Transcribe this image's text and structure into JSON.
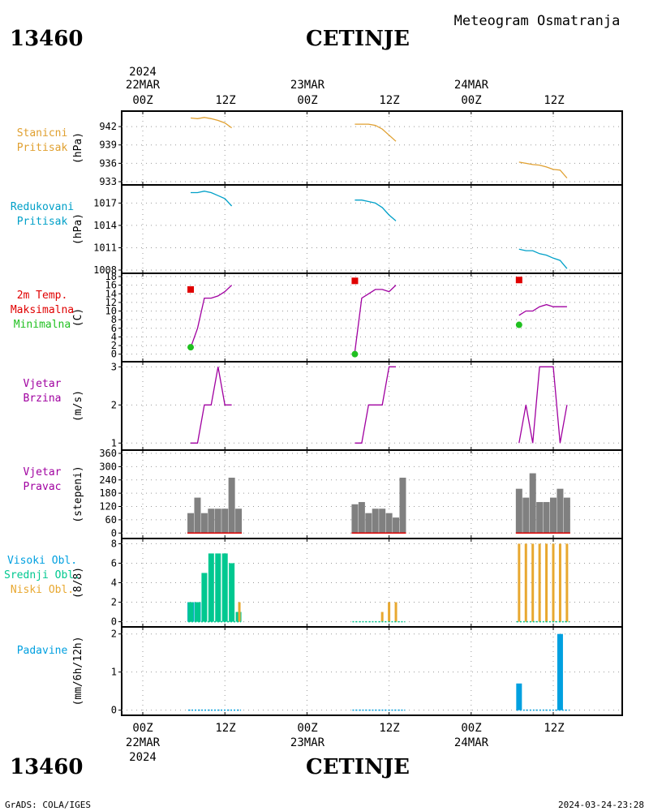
{
  "header": {
    "station_id": "13460",
    "station_name": "CETINJE",
    "meteogram_title": "Meteogram Osmatranja"
  },
  "time_axis": {
    "year": "2024",
    "days": [
      "22MAR",
      "23MAR",
      "24MAR"
    ],
    "ticks": [
      "00Z",
      "12Z",
      "00Z",
      "12Z",
      "00Z",
      "12Z"
    ]
  },
  "footer": {
    "credit": "GrADS: COLA/IGES",
    "timestamp": "2024-03-24-23:28"
  },
  "colors": {
    "station_pressure": "#e0a030",
    "reduced_pressure": "#00a0c8",
    "tmax": "#e00000",
    "tmin": "#20c020",
    "wind": "#a000a0",
    "direction_bar": "#808080",
    "high_cloud": "#00a0e0",
    "mid_cloud": "#00c890",
    "low_cloud": "#e8a830",
    "precip": "#00a0e0"
  },
  "chart_data": [
    {
      "id": "station_pressure",
      "type": "line",
      "labels": [
        "Stanicni",
        "Pritisak"
      ],
      "ylabel": "(hPa)",
      "yticks": [
        933,
        936,
        939,
        942
      ],
      "ylim": [
        933,
        944
      ],
      "series": [
        {
          "x": [
            7,
            8,
            9,
            10,
            11,
            12,
            13
          ],
          "y": [
            943.4,
            943.3,
            943.5,
            943.3,
            943.0,
            942.6,
            941.8
          ]
        },
        {
          "x": [
            31,
            32,
            33,
            34,
            35,
            36,
            37
          ],
          "y": [
            942.4,
            942.4,
            942.4,
            942.2,
            941.6,
            940.6,
            939.6
          ]
        },
        {
          "x": [
            55,
            56,
            57,
            58,
            59,
            60,
            61,
            62
          ],
          "y": [
            936.2,
            936.0,
            935.8,
            935.7,
            935.4,
            935.0,
            934.9,
            933.6
          ]
        }
      ]
    },
    {
      "id": "reduced_pressure",
      "type": "line",
      "labels": [
        "Redukovani",
        "Pritisak"
      ],
      "ylabel": "(hPa)",
      "yticks": [
        1008,
        1011,
        1014,
        1017
      ],
      "ylim": [
        1008,
        1019
      ],
      "series": [
        {
          "x": [
            7,
            8,
            9,
            10,
            11,
            12,
            13
          ],
          "y": [
            1018.4,
            1018.4,
            1018.6,
            1018.4,
            1018.0,
            1017.6,
            1016.6
          ]
        },
        {
          "x": [
            31,
            32,
            33,
            34,
            35,
            36,
            37
          ],
          "y": [
            1017.4,
            1017.4,
            1017.2,
            1017.0,
            1016.4,
            1015.4,
            1014.6
          ]
        },
        {
          "x": [
            55,
            56,
            57,
            58,
            59,
            60,
            61,
            62
          ],
          "y": [
            1010.8,
            1010.6,
            1010.6,
            1010.2,
            1010.0,
            1009.6,
            1009.3,
            1008.2
          ]
        }
      ]
    },
    {
      "id": "temperature",
      "type": "line",
      "labels": [
        "2m Temp.",
        "Maksimalna",
        "Minimalna"
      ],
      "ylabel": "(C)",
      "yticks": [
        0,
        2,
        4,
        6,
        8,
        10,
        12,
        14,
        16,
        18
      ],
      "ylim": [
        -1,
        18
      ],
      "series": [
        {
          "x": [
            7,
            8,
            9,
            10,
            11,
            12,
            13
          ],
          "y": [
            1.5,
            6,
            13,
            13,
            13.5,
            14.5,
            16
          ]
        },
        {
          "x": [
            31,
            32,
            33,
            34,
            35,
            36,
            37
          ],
          "y": [
            0.5,
            13,
            14,
            15,
            15,
            14.5,
            16
          ]
        },
        {
          "x": [
            55,
            56,
            57,
            58,
            59,
            60,
            61,
            62
          ],
          "y": [
            9,
            10,
            10,
            11,
            11.5,
            11,
            11,
            11
          ]
        }
      ],
      "tmax": [
        {
          "x": 7,
          "y": 15
        },
        {
          "x": 31,
          "y": 17
        },
        {
          "x": 55,
          "y": 17.2
        }
      ],
      "tmin": [
        {
          "x": 7,
          "y": 1.6
        },
        {
          "x": 31,
          "y": 0
        },
        {
          "x": 55,
          "y": 6.8
        }
      ]
    },
    {
      "id": "wind_speed",
      "type": "line",
      "labels": [
        "Vjetar",
        "Brzina"
      ],
      "ylabel": "(m/s)",
      "yticks": [
        1,
        2,
        3
      ],
      "ylim": [
        0.9,
        3.05
      ],
      "series": [
        {
          "x": [
            7,
            8,
            9,
            10,
            11,
            12,
            13
          ],
          "y": [
            1,
            1,
            2,
            2,
            3,
            2,
            2
          ]
        },
        {
          "x": [
            31,
            32,
            33,
            34,
            35,
            36,
            37
          ],
          "y": [
            1,
            1,
            2,
            2,
            2,
            3,
            3
          ]
        },
        {
          "x": [
            55,
            56,
            57,
            58,
            59,
            60,
            61,
            62
          ],
          "y": [
            1,
            2,
            1,
            3,
            3,
            3,
            1,
            2
          ]
        }
      ]
    },
    {
      "id": "wind_direction",
      "type": "bar",
      "labels": [
        "Vjetar",
        "Pravac"
      ],
      "ylabel": "(stepeni)",
      "yticks": [
        0,
        60,
        120,
        180,
        240,
        300,
        360
      ],
      "ylim": [
        -10,
        360
      ],
      "x": [
        7,
        8,
        9,
        10,
        11,
        12,
        13,
        14,
        31,
        32,
        33,
        34,
        35,
        36,
        37,
        38,
        55,
        56,
        57,
        58,
        59,
        60,
        61,
        62
      ],
      "values": [
        90,
        160,
        90,
        110,
        110,
        110,
        250,
        110,
        130,
        140,
        90,
        110,
        110,
        90,
        70,
        250,
        200,
        160,
        270,
        140,
        140,
        160,
        200,
        160
      ]
    },
    {
      "id": "clouds",
      "type": "bar",
      "labels": [
        "Visoki Obl.",
        "Srednji Obl.",
        "Niski Obl."
      ],
      "ylabel": "(8/8)",
      "yticks": [
        0,
        2,
        4,
        6,
        8
      ],
      "ylim": [
        -0.2,
        8.2
      ],
      "series": [
        {
          "x": [
            7,
            8
          ],
          "values": [
            2,
            2
          ]
        },
        {
          "x": [
            7,
            8,
            9,
            10,
            11,
            12,
            13,
            14
          ],
          "values": [
            2,
            2,
            5,
            7,
            7,
            7,
            6,
            1
          ]
        },
        {
          "x": [
            14,
            35,
            36,
            37,
            55,
            56,
            57,
            58,
            59,
            60,
            61,
            62
          ],
          "values": [
            2,
            1,
            2,
            2,
            8,
            8,
            8,
            8,
            8,
            8,
            8,
            8
          ]
        }
      ]
    },
    {
      "id": "precipitation",
      "type": "bar",
      "labels": [
        "Padavine"
      ],
      "ylabel": "(mm/6h/12h)",
      "yticks": [
        0,
        1,
        2
      ],
      "ylim": [
        -0.05,
        2.1
      ],
      "x": [
        55,
        61
      ],
      "values": [
        0.7,
        2.0
      ]
    }
  ]
}
